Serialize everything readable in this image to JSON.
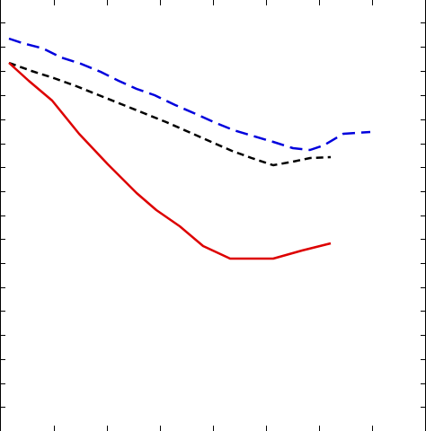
{
  "chart_data": {
    "type": "line",
    "title": "",
    "xlabel": "",
    "ylabel": "",
    "xlim": [
      0,
      474
    ],
    "ylim": [
      480,
      0
    ],
    "x_ticks": [
      60,
      119,
      178,
      237,
      296,
      355,
      414
    ],
    "y_ticks": [
      25,
      52,
      79,
      106,
      133,
      160,
      186,
      213,
      240,
      266,
      293,
      320,
      346,
      373,
      400,
      427,
      453
    ],
    "grid": false,
    "series": [
      {
        "color": "#0000dd",
        "dash": "dashed",
        "x": [
          10,
          25,
          48,
          68,
          90,
          112,
          132,
          152,
          172,
          195,
          218,
          238,
          260,
          280,
          304,
          326,
          345,
          360,
          382,
          412
        ],
        "y": [
          43,
          48,
          54,
          64,
          71,
          80,
          90,
          99,
          106,
          117,
          127,
          136,
          145,
          151,
          158,
          165,
          167,
          162,
          149,
          147
        ]
      },
      {
        "color": "#000000",
        "dash": "dotted",
        "x": [
          10,
          35,
          60,
          85,
          110,
          135,
          160,
          185,
          210,
          235,
          258,
          280,
          304,
          326,
          345,
          368
        ],
        "y": [
          70,
          79,
          87,
          96,
          106,
          116,
          126,
          136,
          147,
          158,
          168,
          176,
          184,
          180,
          176,
          175
        ]
      },
      {
        "color": "#dd0000",
        "dash": "solid",
        "x": [
          10,
          32,
          58,
          88,
          120,
          152,
          174,
          200,
          226,
          256,
          280,
          304,
          336,
          368
        ],
        "y": [
          70,
          90,
          112,
          149,
          183,
          215,
          234,
          252,
          274,
          288,
          288,
          288,
          279,
          271
        ]
      }
    ]
  }
}
